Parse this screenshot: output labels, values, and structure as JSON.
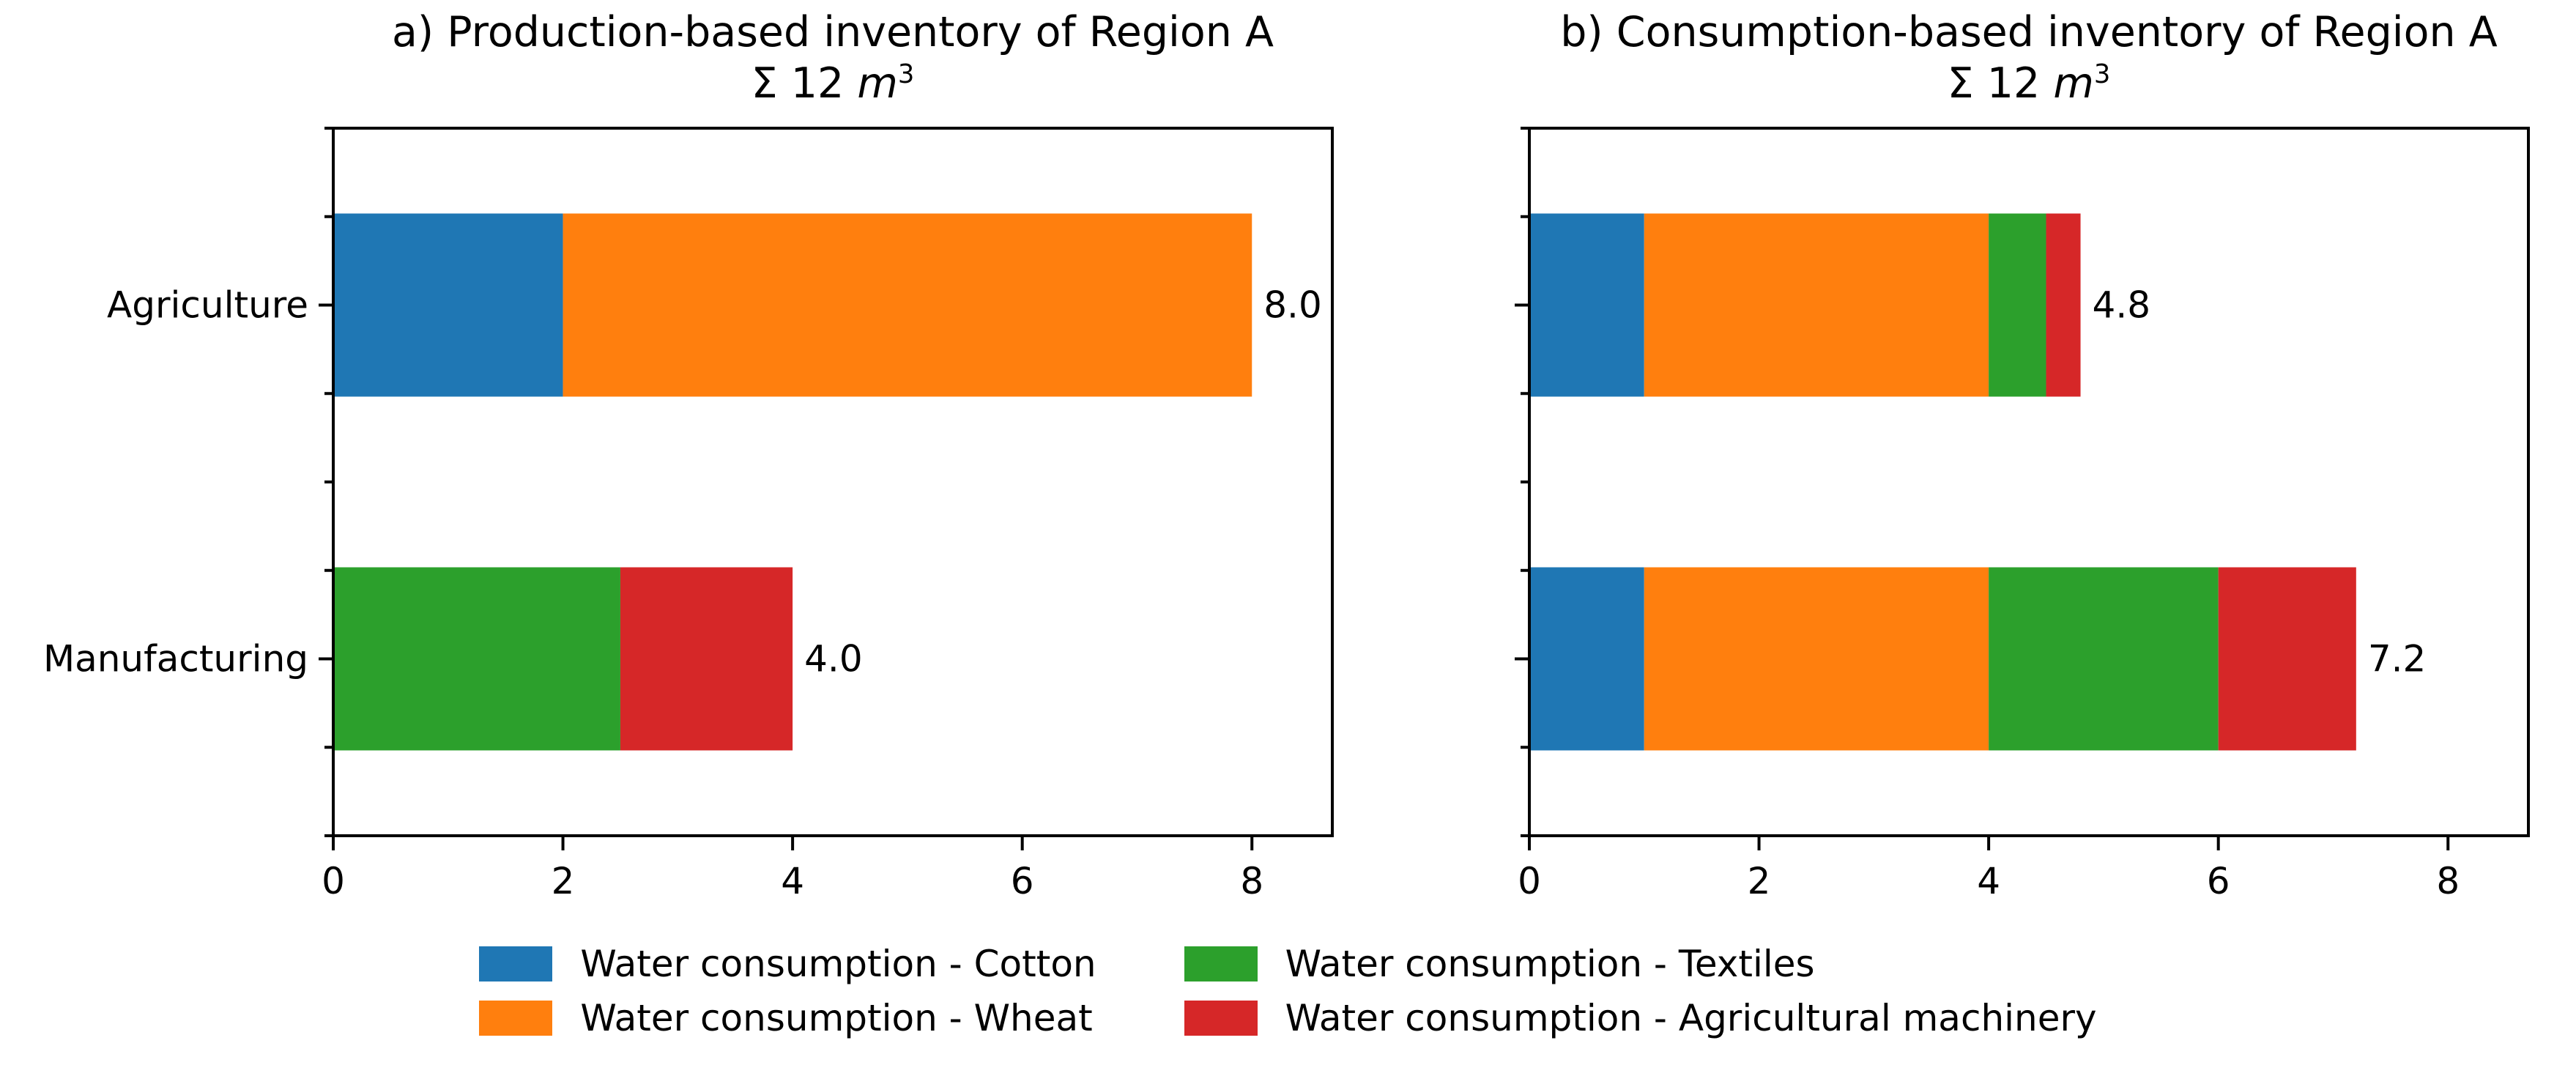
{
  "chart_data": [
    {
      "type": "stacked-barh",
      "title": "a) Production-based inventory of Region A",
      "subtitle": {
        "prefix": "Σ 12 ",
        "unit": "m",
        "exponent": "3"
      },
      "categories": [
        "Agriculture",
        "Manufacturing"
      ],
      "series": [
        {
          "name": "Water consumption - Cotton",
          "color": "#1f77b4",
          "values": [
            2.0,
            0.0
          ]
        },
        {
          "name": "Water consumption - Wheat",
          "color": "#ff7f0e",
          "values": [
            6.0,
            0.0
          ]
        },
        {
          "name": "Water consumption - Textiles",
          "color": "#2ca02c",
          "values": [
            0.0,
            2.5
          ]
        },
        {
          "name": "Water consumption - Agricultural machinery",
          "color": "#d62728",
          "values": [
            0.0,
            1.5
          ]
        }
      ],
      "bar_totals": [
        8.0,
        4.0
      ],
      "bar_total_labels": [
        "8.0",
        "4.0"
      ],
      "xlim": [
        0,
        8.7
      ],
      "xticks": [
        0,
        2,
        4,
        6,
        8
      ],
      "ylim": [
        -0.5,
        1.5
      ],
      "grid": false,
      "show_category_labels": true
    },
    {
      "type": "stacked-barh",
      "title": "b) Consumption-based inventory of Region A",
      "subtitle": {
        "prefix": "Σ 12 ",
        "unit": "m",
        "exponent": "3"
      },
      "categories": [
        "Agriculture",
        "Manufacturing"
      ],
      "series": [
        {
          "name": "Water consumption - Cotton",
          "color": "#1f77b4",
          "values": [
            1.0,
            1.0
          ]
        },
        {
          "name": "Water consumption - Wheat",
          "color": "#ff7f0e",
          "values": [
            3.0,
            3.0
          ]
        },
        {
          "name": "Water consumption - Textiles",
          "color": "#2ca02c",
          "values": [
            0.5,
            2.0
          ]
        },
        {
          "name": "Water consumption - Agricultural machinery",
          "color": "#d62728",
          "values": [
            0.3,
            1.2
          ]
        }
      ],
      "bar_totals": [
        4.8,
        7.2
      ],
      "bar_total_labels": [
        "4.8",
        "7.2"
      ],
      "xlim": [
        0,
        8.7
      ],
      "xticks": [
        0,
        2,
        4,
        6,
        8
      ],
      "ylim": [
        -0.5,
        1.5
      ],
      "grid": false,
      "show_category_labels": false
    }
  ],
  "legend": {
    "position": "bottom-center",
    "columns": 2,
    "items": [
      {
        "label": "Water consumption - Cotton",
        "color": "#1f77b4"
      },
      {
        "label": "Water consumption - Wheat",
        "color": "#ff7f0e"
      },
      {
        "label": "Water consumption - Textiles",
        "color": "#2ca02c"
      },
      {
        "label": "Water consumption - Agricultural machinery",
        "color": "#d62728"
      }
    ]
  },
  "axis": {
    "color": "#000000",
    "background": "#ffffff"
  }
}
